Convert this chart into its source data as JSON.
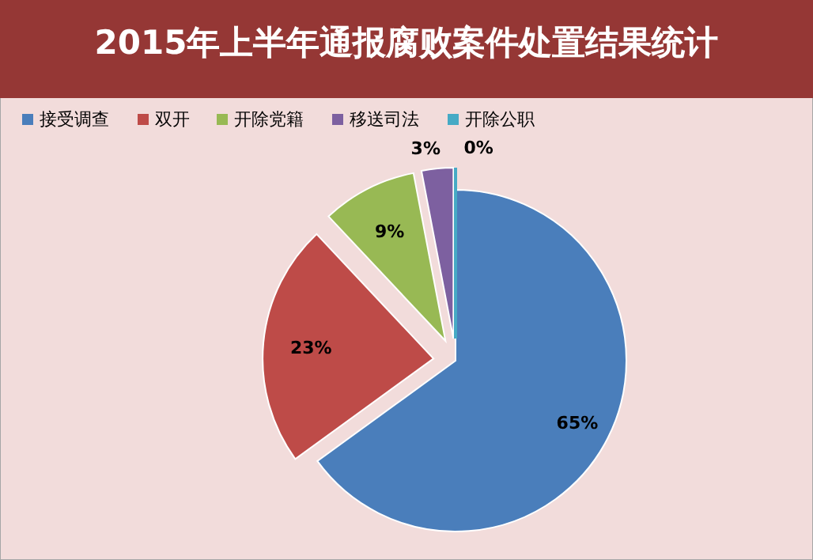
{
  "chart_data": {
    "type": "pie",
    "title": "2015年上半年通报腐败案件处置结果统计",
    "categories": [
      "接受调查",
      "双开",
      "开除党籍",
      "移送司法",
      "开除公职"
    ],
    "values": [
      65,
      23,
      9,
      3,
      0
    ],
    "colors": [
      "#4a7ebb",
      "#be4b48",
      "#98b954",
      "#7d60a0",
      "#46aac5"
    ],
    "value_labels": [
      "65%",
      "23%",
      "9%",
      "3%",
      "0%"
    ],
    "legend": "top"
  }
}
